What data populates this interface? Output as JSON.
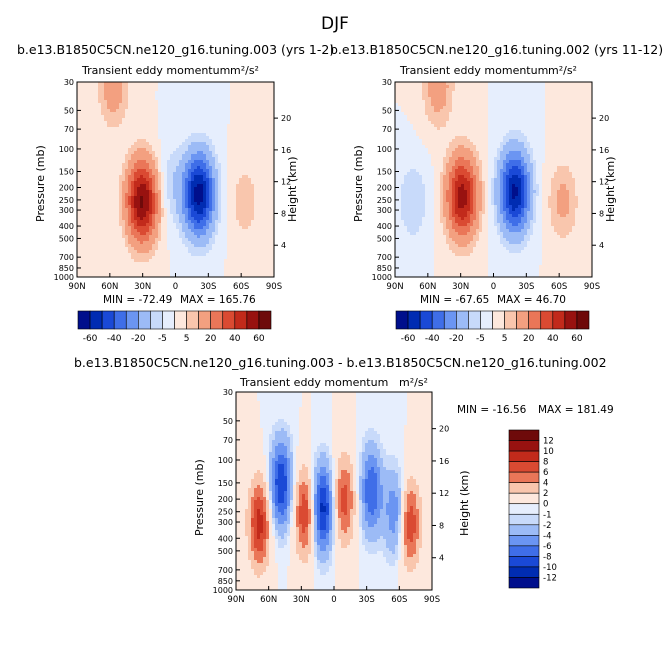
{
  "season": "DJF",
  "panels": [
    {
      "id": "p1",
      "case_title": "b.e13.B1850C5CN.ne120_g16.tuning.003 (yrs 1-2)",
      "subtitle": "Transient eddy momentum",
      "units": "m²/s²",
      "min_label": "MIN = -72.49",
      "max_label": "MAX = 165.76"
    },
    {
      "id": "p2",
      "case_title": "b.e13.B1850C5CN.ne120_g16.tuning.002 (yrs 11-12)",
      "subtitle": "Transient eddy momentum",
      "units": "m²/s²",
      "min_label": "MIN = -67.65",
      "max_label": "MAX = 46.70"
    },
    {
      "id": "p3",
      "case_title": "b.e13.B1850C5CN.ne120_g16.tuning.003 - b.e13.B1850C5CN.ne120_g16.tuning.002",
      "subtitle": "Transient eddy momentum",
      "units": "m²/s²",
      "min_label": "MIN = -16.56",
      "max_label": "MAX = 181.49"
    }
  ],
  "chart_data": [
    {
      "type": "heatmap",
      "panel": "p1",
      "ylabel": "Pressure (mb)",
      "y2label": "Height (km)",
      "x_ticks": [
        "90N",
        "60N",
        "30N",
        "0",
        "30S",
        "60S",
        "90S"
      ],
      "y_ticks": [
        30,
        50,
        70,
        100,
        150,
        200,
        250,
        300,
        400,
        500,
        700,
        850,
        1000
      ],
      "y2_ticks": [
        4,
        8,
        12,
        16,
        20
      ],
      "colorbar_labels": [
        "-60",
        "-40",
        "-20",
        "-5",
        "5",
        "20",
        "40",
        "60"
      ],
      "features": [
        {
          "lat": 32,
          "p": 250,
          "value": 62
        },
        {
          "lat": -20,
          "p": 220,
          "value": -65
        },
        {
          "lat": 58,
          "p": 32,
          "value": 15
        },
        {
          "lat": -62,
          "p": 250,
          "value": 8
        },
        {
          "lat": 5,
          "p": 180,
          "value": -8
        }
      ],
      "stats": {
        "min": -72.49,
        "max": 165.76
      }
    },
    {
      "type": "heatmap",
      "panel": "p2",
      "ylabel": "Pressure (mb)",
      "y2label": "Height (km)",
      "x_ticks": [
        "90N",
        "60N",
        "30N",
        "0",
        "30S",
        "60S",
        "90S"
      ],
      "y_ticks": [
        30,
        50,
        70,
        100,
        150,
        200,
        250,
        300,
        400,
        500,
        700,
        850,
        1000
      ],
      "y2_ticks": [
        4,
        8,
        12,
        16,
        20
      ],
      "colorbar_labels": [
        "-60",
        "-40",
        "-20",
        "-5",
        "5",
        "20",
        "40",
        "60"
      ],
      "features": [
        {
          "lat": 30,
          "p": 230,
          "value": 55
        },
        {
          "lat": -18,
          "p": 210,
          "value": -62
        },
        {
          "lat": 52,
          "p": 32,
          "value": 15
        },
        {
          "lat": -62,
          "p": 250,
          "value": 12
        },
        {
          "lat": 75,
          "p": 250,
          "value": -10
        }
      ],
      "stats": {
        "min": -67.65,
        "max": 46.7
      }
    },
    {
      "type": "heatmap",
      "panel": "p3",
      "ylabel": "Pressure (mb)",
      "y2label": "Height (km)",
      "x_ticks": [
        "90N",
        "60N",
        "30N",
        "0",
        "30S",
        "60S",
        "90S"
      ],
      "y_ticks": [
        30,
        50,
        70,
        100,
        150,
        200,
        250,
        300,
        400,
        500,
        700,
        850,
        1000
      ],
      "y2_ticks": [
        4,
        8,
        12,
        16,
        20
      ],
      "colorbar_labels": [
        "12",
        "10",
        "8",
        "6",
        "4",
        "2",
        "0",
        "-1",
        "-2",
        "-4",
        "-6",
        "-8",
        "-10",
        "-12"
      ],
      "features": [
        {
          "lat": 70,
          "p": 300,
          "value": 9
        },
        {
          "lat": 50,
          "p": 150,
          "value": -10
        },
        {
          "lat": 28,
          "p": 250,
          "value": 8
        },
        {
          "lat": 12,
          "p": 230,
          "value": -11
        },
        {
          "lat": -8,
          "p": 200,
          "value": 7
        },
        {
          "lat": -33,
          "p": 170,
          "value": -8
        },
        {
          "lat": -55,
          "p": 250,
          "value": -6
        },
        {
          "lat": -68,
          "p": 300,
          "value": 8
        }
      ],
      "stats": {
        "min": -16.56,
        "max": 181.49
      }
    }
  ],
  "colors": {
    "palette_top": [
      "#000f8c",
      "#002cb2",
      "#1a49d6",
      "#3f6ee8",
      "#6b95f2",
      "#9cbbf6",
      "#c8dafa",
      "#e6eefd",
      "#fde8dd",
      "#f9c6ad",
      "#f3a080",
      "#ea7658",
      "#da4a32",
      "#c22a1b",
      "#981210",
      "#6e0a0a"
    ],
    "palette_diff": [
      "#6e0a0a",
      "#981210",
      "#c22a1b",
      "#da4a32",
      "#ea7658",
      "#f9c6ad",
      "#fde8dd",
      "#e6eefd",
      "#c8dafa",
      "#9cbbf6",
      "#6b95f2",
      "#3f6ee8",
      "#1a49d6",
      "#002cb2",
      "#000f8c"
    ]
  }
}
